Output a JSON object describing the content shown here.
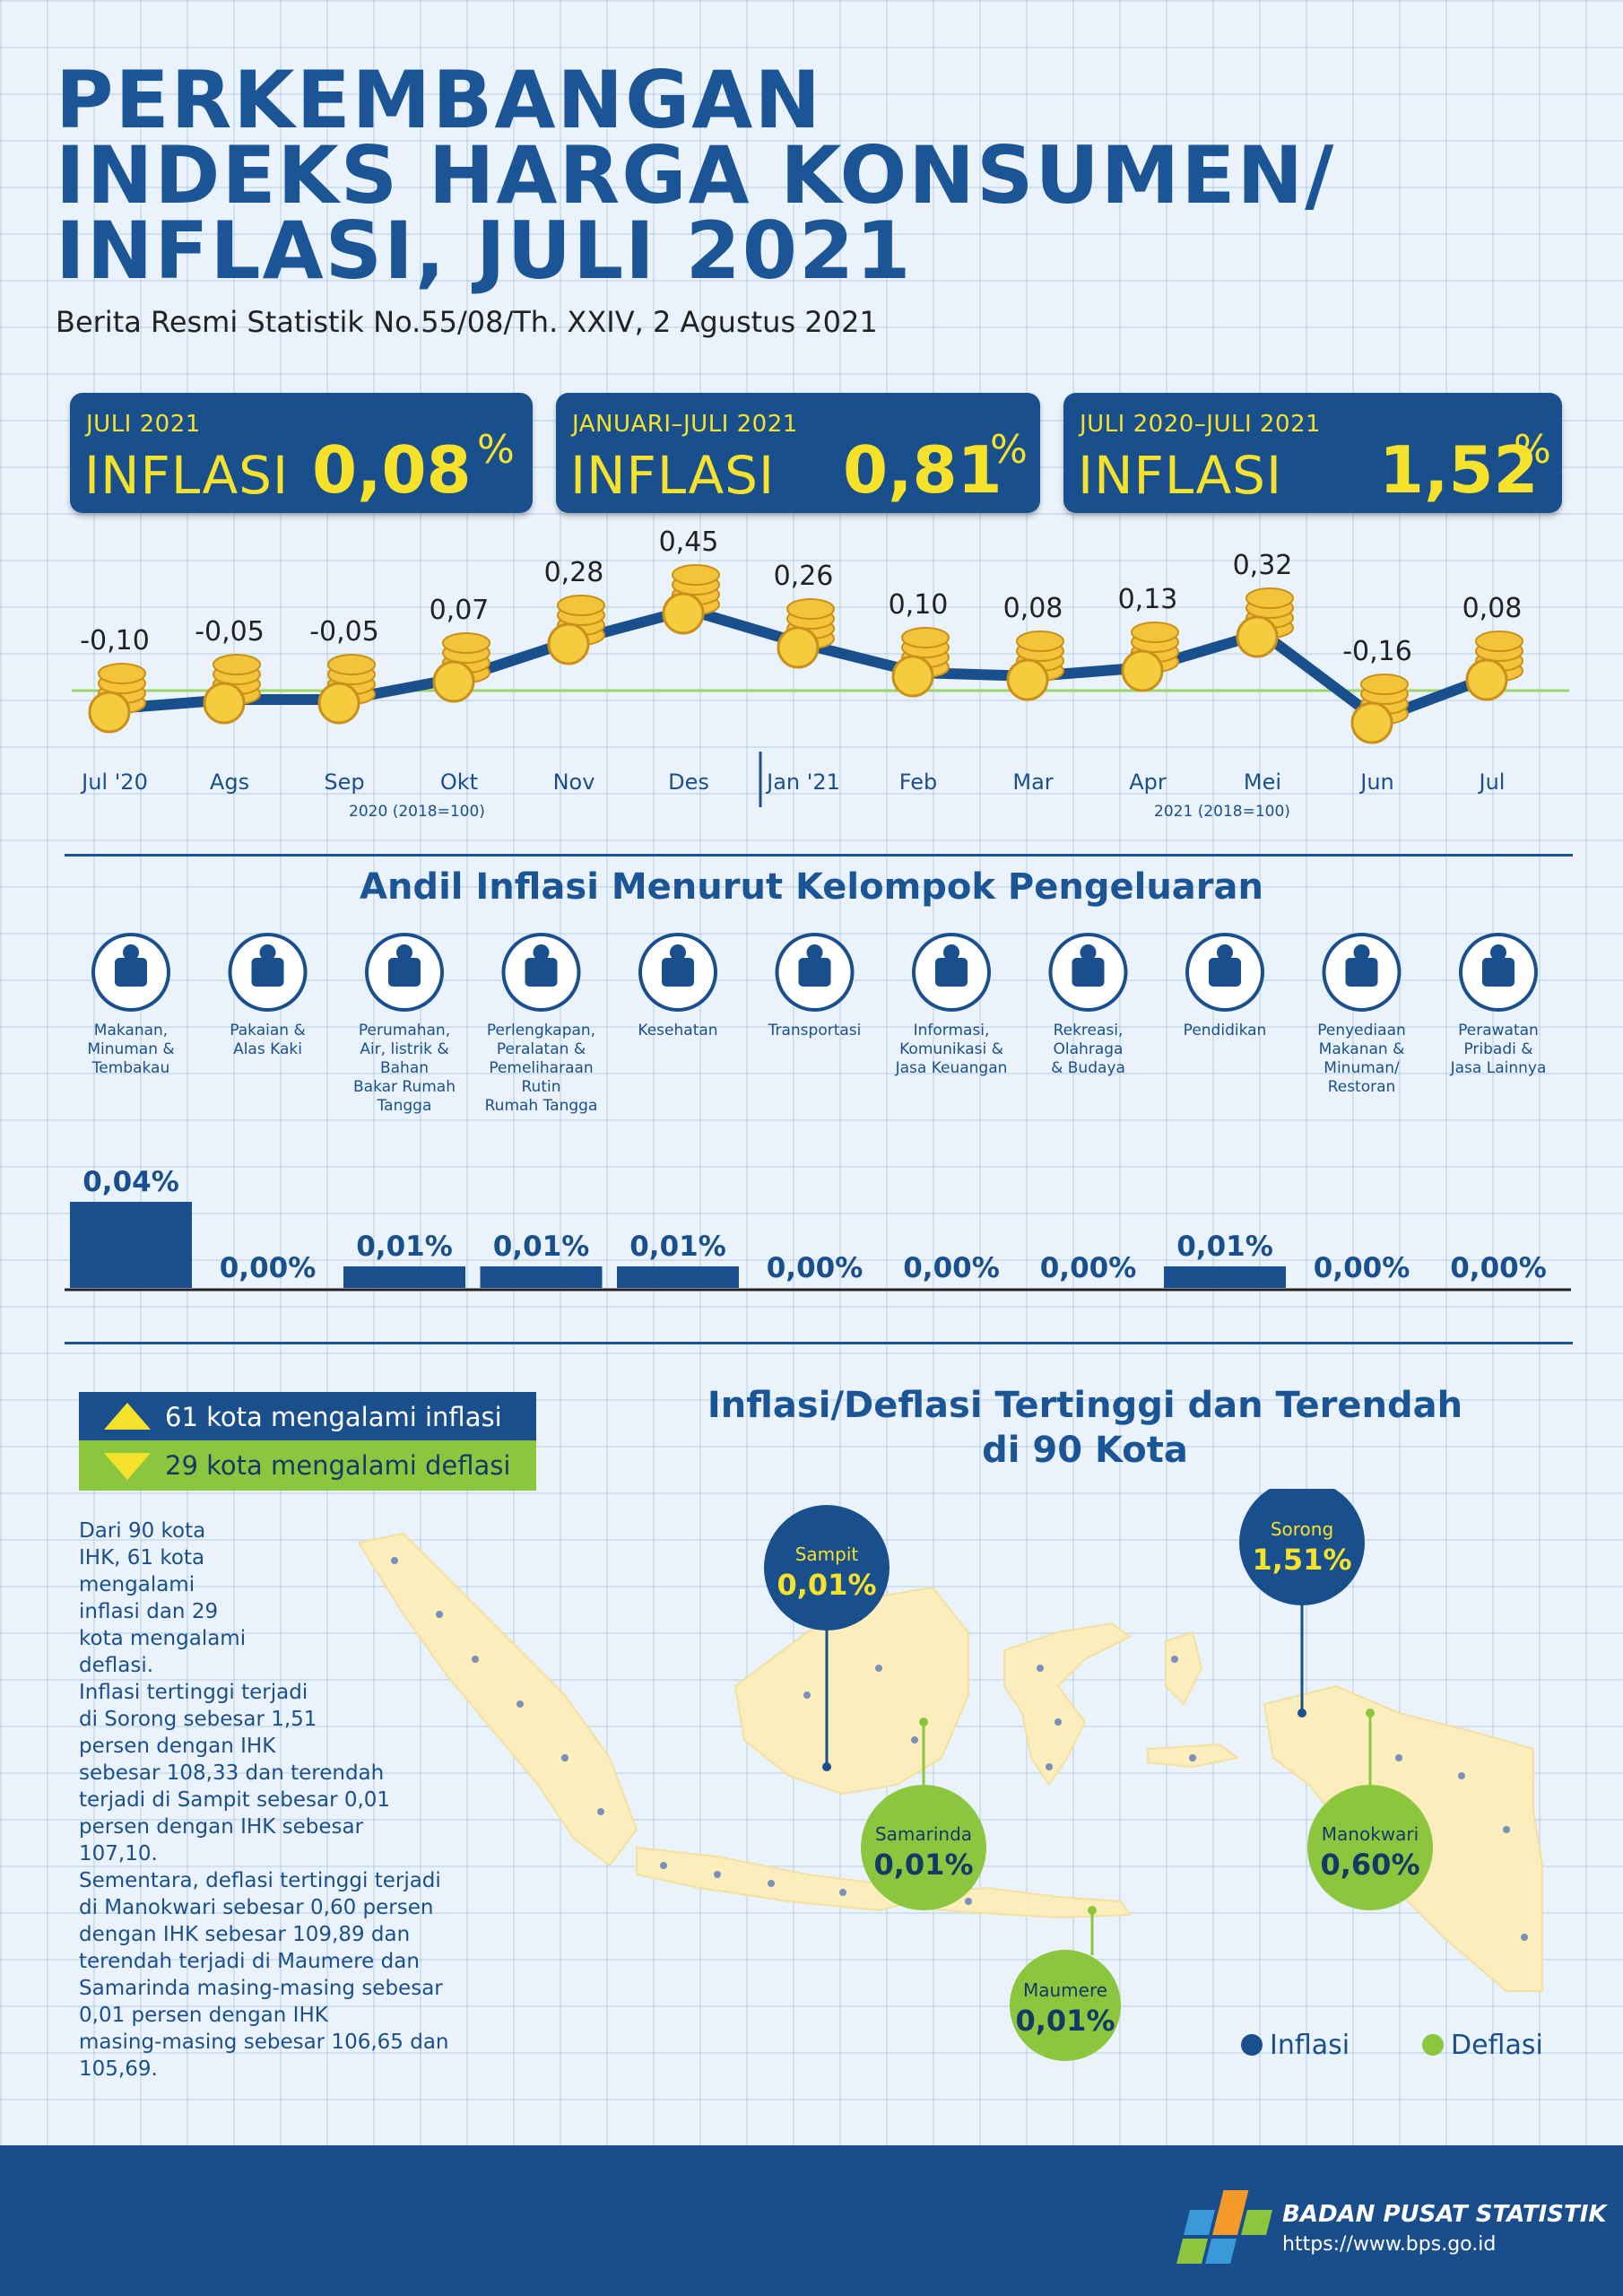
{
  "header": {
    "title_lines": [
      "PERKEMBANGAN",
      "INDEKS HARGA KONSUMEN/",
      "INFLASI, JULI 2021"
    ],
    "subtitle": "Berita Resmi Statistik No.55/08/Th. XXIV, 2 Agustus 2021"
  },
  "stats": [
    {
      "period": "JULI 2021",
      "label": "INFLASI",
      "value": "0,08",
      "unit": "%"
    },
    {
      "period": "JANUARI–JULI 2021",
      "label": "INFLASI",
      "value": "0,81",
      "unit": "%"
    },
    {
      "period": "JULI 2020–JULI 2021",
      "label": "INFLASI",
      "value": "1,52",
      "unit": "%"
    }
  ],
  "chart_data": [
    {
      "type": "line",
      "categories": [
        "Jul '20",
        "Ags",
        "Sep",
        "Okt",
        "Nov",
        "Des",
        "Jan '21",
        "Feb",
        "Mar",
        "Apr",
        "Mei",
        "Jun",
        "Jul"
      ],
      "values": [
        -0.1,
        -0.05,
        -0.05,
        0.07,
        0.28,
        0.45,
        0.26,
        0.1,
        0.08,
        0.13,
        0.32,
        -0.16,
        0.08
      ],
      "labels": [
        "-0,10",
        "-0,05",
        "-0,05",
        "0,07",
        "0,28",
        "0,45",
        "0,26",
        "0,10",
        "0,08",
        "0,13",
        "0,32",
        "-0,16",
        "0,08"
      ],
      "period_notes": [
        "2020 (2018=100)",
        "2021 (2018=100)"
      ],
      "grid": false
    },
    {
      "type": "bar",
      "title": "Andil Inflasi Menurut Kelompok Pengeluaran",
      "categories": [
        "Makanan, Minuman & Tembakau",
        "Pakaian & Alas Kaki",
        "Perumahan, Air, listrik & Bahan Bakar Rumah Tangga",
        "Perlengkapan, Peralatan & Pemeliharaan Rutin Rumah Tangga",
        "Kesehatan",
        "Transportasi",
        "Informasi, Komunikasi & Jasa Keuangan",
        "Rekreasi, Olahraga & Budaya",
        "Pendidikan",
        "Penyediaan Makanan & Minuman/ Restoran",
        "Perawatan Pribadi & Jasa Lainnya"
      ],
      "category_lines": [
        [
          "Makanan,",
          "Minuman &",
          "Tembakau"
        ],
        [
          "Pakaian &",
          "Alas Kaki"
        ],
        [
          "Perumahan,",
          "Air, listrik &",
          "Bahan",
          "Bakar Rumah",
          "Tangga"
        ],
        [
          "Perlengkapan,",
          "Peralatan &",
          "Pemeliharaan",
          "Rutin",
          "Rumah Tangga"
        ],
        [
          "Kesehatan"
        ],
        [
          "Transportasi"
        ],
        [
          "Informasi,",
          "Komunikasi &",
          "Jasa Keuangan"
        ],
        [
          "Rekreasi,",
          "Olahraga",
          "& Budaya"
        ],
        [
          "Pendidikan"
        ],
        [
          "Penyediaan",
          "Makanan &",
          "Minuman/",
          "Restoran"
        ],
        [
          "Perawatan",
          "Pribadi &",
          "Jasa Lainnya"
        ]
      ],
      "icons": [
        "grocery-bag-icon",
        "dress-icon",
        "house-icon",
        "power-plug-icon",
        "first-aid-kit-icon",
        "airplane-icon",
        "smartphone-icon",
        "soccer-player-icon",
        "graduation-cap-icon",
        "fast-food-icon",
        "scissors-comb-icon"
      ],
      "values": [
        0.04,
        0.0,
        0.01,
        0.01,
        0.01,
        0.0,
        0.0,
        0.0,
        0.01,
        0.0,
        0.0
      ],
      "labels": [
        "0,04%",
        "0,00%",
        "0,01%",
        "0,01%",
        "0,01%",
        "0,00%",
        "0,00%",
        "0,00%",
        "0,01%",
        "0,00%",
        "0,00%"
      ]
    }
  ],
  "cities": {
    "legend_inflasi": "61 kota mengalami inflasi",
    "legend_deflasi": "29 kota mengalami deflasi",
    "description_lines": [
      "Dari 90 kota",
      "IHK, 61 kota",
      "mengalami",
      "inflasi dan 29",
      "kota mengalami",
      "deflasi.",
      "Inflasi tertinggi terjadi",
      "di Sorong sebesar 1,51",
      "persen dengan IHK",
      "sebesar 108,33 dan terendah",
      "terjadi di Sampit sebesar 0,01",
      "persen dengan IHK sebesar",
      "107,10.",
      "Sementara, deflasi tertinggi terjadi",
      "di Manokwari sebesar 0,60 persen",
      "dengan IHK sebesar 109,89 dan",
      "terendah terjadi di Maumere dan",
      "Samarinda masing-masing sebesar",
      "0,01 persen dengan IHK",
      "masing-masing sebesar 106,65 dan",
      "105,69."
    ],
    "map_title_lines": [
      "Inflasi/Deflasi Tertinggi dan Terendah",
      "di 90 Kota"
    ],
    "callouts": [
      {
        "city": "Sampit",
        "value": "0,01%",
        "kind": "inflasi"
      },
      {
        "city": "Samarinda",
        "value": "0,01%",
        "kind": "deflasi"
      },
      {
        "city": "Sorong",
        "value": "1,51%",
        "kind": "inflasi"
      },
      {
        "city": "Manokwari",
        "value": "0,60%",
        "kind": "deflasi"
      },
      {
        "city": "Maumere",
        "value": "0,01%",
        "kind": "deflasi"
      }
    ],
    "legend_labels": [
      "Inflasi",
      "Deflasi"
    ]
  },
  "footer": {
    "org_name": "BADAN PUSAT STATISTIK",
    "url": "https://www.bps.go.id"
  },
  "colors": {
    "navy": "#1a4f8d",
    "yellow": "#f6e22a",
    "green": "#8cc63f",
    "coin": "#f3c43a",
    "map_land": "#fbeebc"
  }
}
